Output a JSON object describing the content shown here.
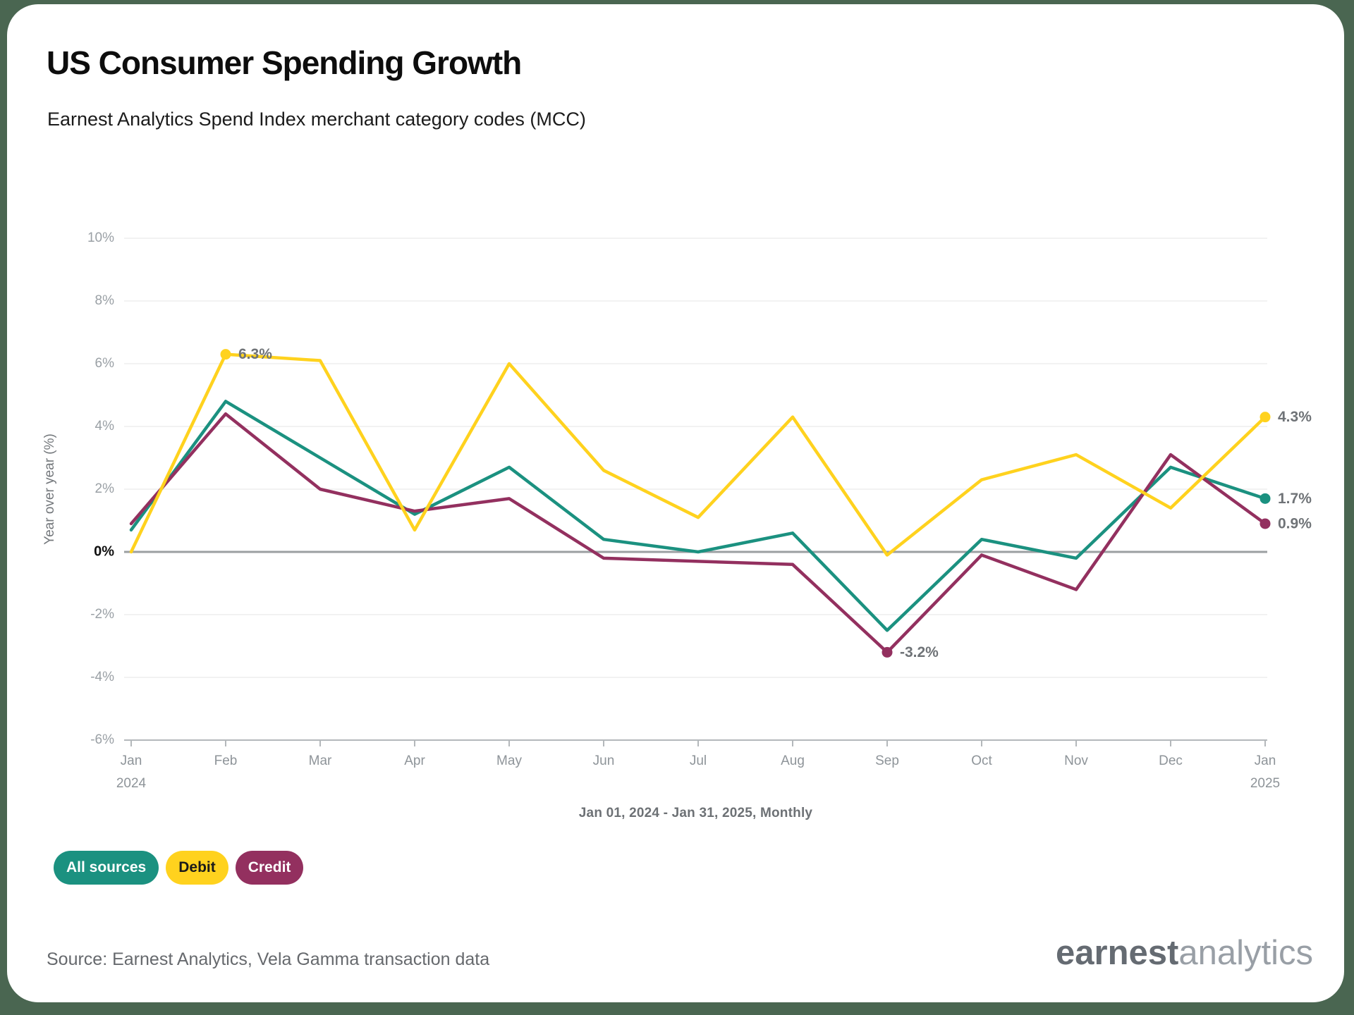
{
  "header": {
    "title": "US Consumer Spending Growth",
    "subtitle": "Earnest Analytics Spend Index merchant category codes (MCC)"
  },
  "chart_data": {
    "type": "line",
    "title": "US Consumer Spending Growth",
    "subtitle": "Earnest Analytics Spend Index merchant category codes (MCC)",
    "x_categories": [
      "Jan",
      "Feb",
      "Mar",
      "Apr",
      "May",
      "Jun",
      "Jul",
      "Aug",
      "Sep",
      "Oct",
      "Nov",
      "Dec",
      "Jan"
    ],
    "x_year_labels": [
      {
        "index": 0,
        "label": "2024"
      },
      {
        "index": 12,
        "label": "2025"
      }
    ],
    "caption": "Jan 01, 2024 - Jan 31, 2025, Monthly",
    "ylabel": "Year over year (%)",
    "ylim": [
      -6,
      10
    ],
    "y_ticks": [
      {
        "value": 10,
        "label": "10%"
      },
      {
        "value": 8,
        "label": "8%"
      },
      {
        "value": 6,
        "label": "6%"
      },
      {
        "value": 4,
        "label": "4%"
      },
      {
        "value": 2,
        "label": "2%"
      },
      {
        "value": 0,
        "label": "0%"
      },
      {
        "value": -2,
        "label": "-2%"
      },
      {
        "value": -4,
        "label": "-4%"
      },
      {
        "value": -6,
        "label": "-6%"
      }
    ],
    "grid": "horizontal",
    "legend_position": "bottom-left",
    "series": [
      {
        "name": "All sources",
        "color": "#1B9180",
        "label_color": "#ffffff",
        "values": [
          0.7,
          4.8,
          3.0,
          1.2,
          2.7,
          0.4,
          0.0,
          0.6,
          -2.5,
          0.4,
          -0.2,
          2.7,
          1.7
        ]
      },
      {
        "name": "Debit",
        "color": "#FFD21E",
        "label_color": "#1a1a1a",
        "values": [
          0.0,
          6.3,
          6.1,
          0.7,
          6.0,
          2.6,
          1.1,
          4.3,
          -0.1,
          2.3,
          3.1,
          1.4,
          4.3
        ]
      },
      {
        "name": "Credit",
        "color": "#93305F",
        "label_color": "#ffffff",
        "values": [
          0.9,
          4.4,
          2.0,
          1.3,
          1.7,
          -0.2,
          -0.3,
          -0.4,
          -3.2,
          -0.1,
          -1.2,
          3.1,
          0.9
        ]
      }
    ],
    "annotations": [
      {
        "series": "Debit",
        "index": 1,
        "label": "6.3%"
      },
      {
        "series": "Credit",
        "index": 8,
        "label": "-3.2%"
      },
      {
        "series": "Debit",
        "index": 12,
        "label": "4.3%"
      },
      {
        "series": "All sources",
        "index": 12,
        "label": "1.7%"
      },
      {
        "series": "Credit",
        "index": 12,
        "label": "0.9%"
      }
    ]
  },
  "legend": {
    "items": [
      {
        "label": "All sources"
      },
      {
        "label": "Debit"
      },
      {
        "label": "Credit"
      }
    ]
  },
  "footer": {
    "source": "Source: Earnest Analytics, Vela Gamma transaction data",
    "logo_bold": "earnest",
    "logo_light": "analytics"
  },
  "colors": {
    "page_background": "#4A6651",
    "card_background": "#ffffff",
    "grid_line": "#ededed",
    "zero_line": "#9b9fa2",
    "axis_line": "#b4b8bb",
    "tick_text": "#9aa0a5",
    "zero_tick_text": "#0f0f0f",
    "month_text": "#8e9499",
    "caption_text": "#6d7175",
    "annotation_text": "#6f7377",
    "ylabel_text": "#74787c"
  }
}
